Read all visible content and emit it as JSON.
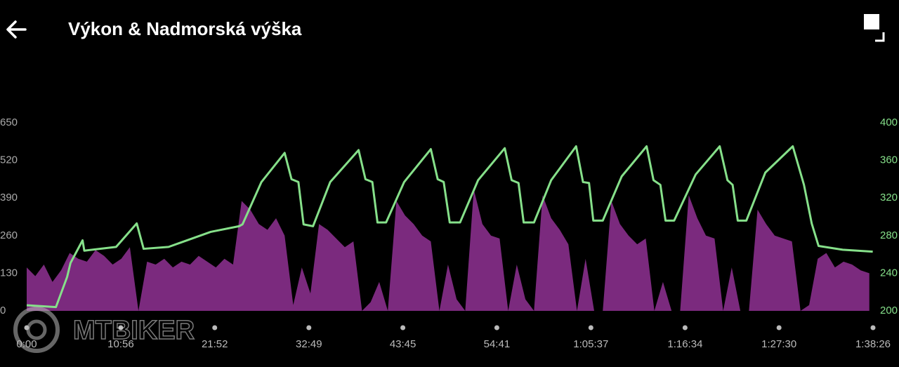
{
  "header": {
    "title": "Výkon & Nadmorská výška"
  },
  "watermark": "MTBIKER",
  "chart_data": {
    "type": "area-line",
    "xlim": [
      0,
      98.43
    ],
    "xticks": [
      {
        "value": 0,
        "label": "0:00"
      },
      {
        "value": 10.94,
        "label": "10:56"
      },
      {
        "value": 21.87,
        "label": "21:52"
      },
      {
        "value": 32.82,
        "label": "32:49"
      },
      {
        "value": 43.75,
        "label": "43:45"
      },
      {
        "value": 54.68,
        "label": "54:41"
      },
      {
        "value": 65.62,
        "label": "1:05:37"
      },
      {
        "value": 76.57,
        "label": "1:16:34"
      },
      {
        "value": 87.5,
        "label": "1:27:30"
      },
      {
        "value": 98.43,
        "label": "1:38:26"
      }
    ],
    "ylim": [
      0,
      650
    ],
    "yticks": [
      0,
      130,
      260,
      390,
      520,
      650
    ],
    "y2lim": [
      200,
      400
    ],
    "y2ticks": [
      200,
      240,
      280,
      320,
      360,
      400
    ],
    "series": [
      {
        "kind": "area",
        "color": "#7b2a7e",
        "x": [
          0,
          1,
          2,
          3,
          4,
          5,
          6,
          7,
          8,
          9,
          10,
          11,
          12,
          13,
          14,
          15,
          16,
          17,
          18,
          19,
          20,
          21,
          22,
          23,
          24,
          25,
          26,
          27,
          28,
          29,
          30,
          31,
          32,
          33,
          34,
          35,
          36,
          37,
          38,
          39,
          40,
          41,
          42,
          43,
          44,
          45,
          46,
          47,
          48,
          49,
          50,
          51,
          52,
          53,
          54,
          55,
          56,
          57,
          58,
          59,
          60,
          61,
          62,
          63,
          64,
          65,
          66,
          67,
          68,
          69,
          70,
          71,
          72,
          73,
          74,
          75,
          76,
          77,
          78,
          79,
          80,
          81,
          82,
          83,
          84,
          85,
          86,
          87,
          88,
          89,
          90,
          91,
          92,
          93,
          94,
          95,
          96,
          97,
          98
        ],
        "values": [
          150,
          120,
          160,
          100,
          140,
          200,
          180,
          170,
          210,
          190,
          160,
          180,
          220,
          0,
          170,
          160,
          180,
          150,
          170,
          160,
          190,
          170,
          150,
          180,
          160,
          380,
          350,
          300,
          280,
          320,
          260,
          20,
          150,
          60,
          300,
          280,
          250,
          220,
          240,
          0,
          30,
          100,
          0,
          380,
          330,
          300,
          260,
          240,
          0,
          160,
          40,
          0,
          420,
          300,
          260,
          250,
          0,
          160,
          40,
          0,
          400,
          320,
          280,
          230,
          0,
          180,
          0,
          0,
          380,
          300,
          260,
          230,
          250,
          0,
          100,
          0,
          0,
          400,
          320,
          260,
          250,
          0,
          150,
          0,
          0,
          350,
          300,
          260,
          250,
          240,
          0,
          20,
          180,
          200,
          150,
          170,
          160,
          140,
          130
        ]
      },
      {
        "kind": "line",
        "axis": "y2",
        "color": "#86e08a",
        "x": [
          0,
          3.4,
          4.7,
          5.1,
          6.5,
          6.7,
          10.4,
          12.8,
          13.6,
          16.5,
          21.4,
          24.7,
          25.1,
          27.3,
          30.0,
          30.8,
          31.6,
          32.2,
          33.3,
          35.3,
          38.6,
          39.4,
          40.2,
          40.8,
          41.8,
          43.9,
          47.0,
          47.8,
          48.5,
          49.2,
          50.4,
          52.5,
          55.6,
          56.4,
          57.2,
          57.8,
          59.0,
          61.0,
          63.9,
          64.7,
          65.4,
          65.9,
          67.0,
          69.2,
          72.1,
          72.9,
          73.7,
          74.3,
          75.3,
          77.8,
          80.6,
          81.5,
          82.1,
          82.7,
          83.7,
          85.9,
          89.1,
          90.4,
          91.3,
          92.1,
          94.9,
          98.4
        ],
        "values": [
          206,
          204,
          236,
          251,
          275,
          264,
          268,
          293,
          266,
          268,
          284,
          290,
          292,
          337,
          368,
          340,
          337,
          292,
          290,
          337,
          371,
          340,
          337,
          294,
          294,
          337,
          372,
          340,
          337,
          294,
          294,
          339,
          373,
          339,
          336,
          294,
          294,
          339,
          375,
          337,
          336,
          296,
          296,
          343,
          375,
          339,
          334,
          296,
          296,
          345,
          375,
          339,
          334,
          296,
          296,
          347,
          375,
          334,
          293,
          269,
          265,
          263
        ]
      }
    ]
  }
}
